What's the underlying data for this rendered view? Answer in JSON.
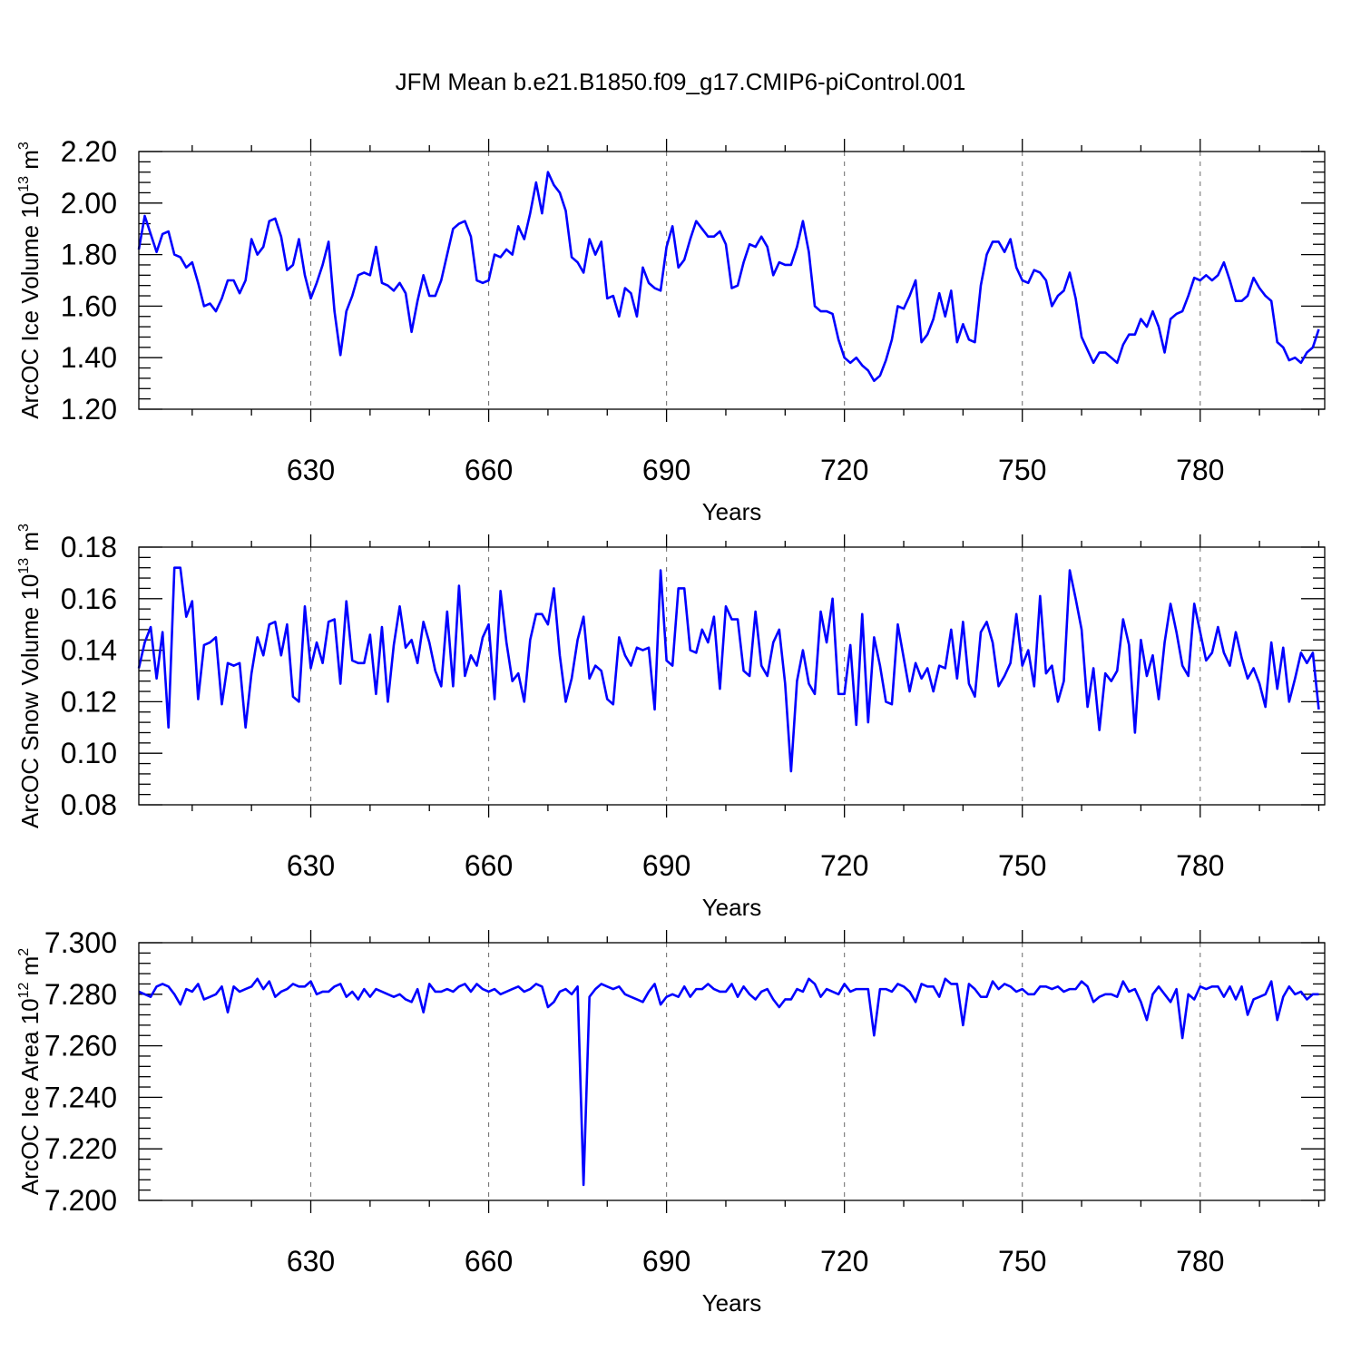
{
  "title": "JFM Mean b.e21.B1850.f09_g17.CMIP6-piControl.001",
  "line_color": "#0000ff",
  "chart_data": [
    {
      "type": "line",
      "xlabel": "Years",
      "ylabel": "ArcOC Ice Volume 10",
      "ylabel_exp": "13",
      "ylabel_unit": "m",
      "ylabel_unit_exp": "3",
      "xlim": [
        601,
        801
      ],
      "ylim": [
        1.2,
        2.2
      ],
      "x_ticks": [
        "630",
        "660",
        "690",
        "720",
        "750",
        "780"
      ],
      "y_ticks": [
        "1.20",
        "1.40",
        "1.60",
        "1.80",
        "2.00",
        "2.20"
      ],
      "grid": "vertical dashed at major x ticks",
      "x_start": 601,
      "values": [
        1.82,
        1.95,
        1.88,
        1.81,
        1.88,
        1.89,
        1.8,
        1.79,
        1.75,
        1.77,
        1.69,
        1.6,
        1.61,
        1.58,
        1.63,
        1.7,
        1.7,
        1.65,
        1.7,
        1.86,
        1.8,
        1.83,
        1.93,
        1.94,
        1.87,
        1.74,
        1.76,
        1.86,
        1.72,
        1.63,
        1.69,
        1.76,
        1.85,
        1.58,
        1.41,
        1.58,
        1.64,
        1.72,
        1.73,
        1.72,
        1.83,
        1.69,
        1.68,
        1.66,
        1.69,
        1.65,
        1.5,
        1.62,
        1.72,
        1.64,
        1.64,
        1.7,
        1.8,
        1.9,
        1.92,
        1.93,
        1.87,
        1.7,
        1.69,
        1.7,
        1.8,
        1.79,
        1.82,
        1.8,
        1.91,
        1.86,
        1.96,
        2.08,
        1.96,
        2.12,
        2.07,
        2.04,
        1.97,
        1.79,
        1.77,
        1.73,
        1.86,
        1.8,
        1.85,
        1.63,
        1.64,
        1.56,
        1.67,
        1.65,
        1.56,
        1.75,
        1.69,
        1.67,
        1.66,
        1.83,
        1.91,
        1.75,
        1.78,
        1.86,
        1.93,
        1.9,
        1.87,
        1.87,
        1.89,
        1.84,
        1.67,
        1.68,
        1.77,
        1.84,
        1.83,
        1.87,
        1.83,
        1.72,
        1.77,
        1.76,
        1.76,
        1.83,
        1.93,
        1.81,
        1.6,
        1.58,
        1.58,
        1.57,
        1.47,
        1.4,
        1.38,
        1.4,
        1.37,
        1.35,
        1.31,
        1.33,
        1.39,
        1.47,
        1.6,
        1.59,
        1.64,
        1.7,
        1.46,
        1.49,
        1.55,
        1.65,
        1.56,
        1.66,
        1.46,
        1.53,
        1.47,
        1.46,
        1.68,
        1.8,
        1.85,
        1.85,
        1.81,
        1.86,
        1.75,
        1.7,
        1.69,
        1.74,
        1.73,
        1.7,
        1.6,
        1.64,
        1.66,
        1.73,
        1.63,
        1.48,
        1.43,
        1.38,
        1.42,
        1.42,
        1.4,
        1.38,
        1.45,
        1.49,
        1.49,
        1.55,
        1.52,
        1.58,
        1.52,
        1.42,
        1.55,
        1.57,
        1.58,
        1.64,
        1.71,
        1.7,
        1.72,
        1.7,
        1.72,
        1.77,
        1.7,
        1.62,
        1.62,
        1.64,
        1.71,
        1.67,
        1.64,
        1.62,
        1.46,
        1.44,
        1.39,
        1.4,
        1.38,
        1.42,
        1.44,
        1.51
      ]
    },
    {
      "type": "line",
      "xlabel": "Years",
      "ylabel": "ArcOC Snow Volume 10",
      "ylabel_exp": "13",
      "ylabel_unit": "m",
      "ylabel_unit_exp": "3",
      "xlim": [
        601,
        801
      ],
      "ylim": [
        0.08,
        0.18
      ],
      "x_ticks": [
        "630",
        "660",
        "690",
        "720",
        "750",
        "780"
      ],
      "y_ticks": [
        "0.08",
        "0.10",
        "0.12",
        "0.14",
        "0.16",
        "0.18"
      ],
      "grid": "vertical dashed at major x ticks",
      "x_start": 601,
      "values": [
        0.133,
        0.143,
        0.149,
        0.129,
        0.147,
        0.11,
        0.172,
        0.172,
        0.153,
        0.159,
        0.121,
        0.142,
        0.143,
        0.145,
        0.119,
        0.135,
        0.134,
        0.135,
        0.11,
        0.131,
        0.145,
        0.138,
        0.15,
        0.151,
        0.138,
        0.15,
        0.122,
        0.12,
        0.157,
        0.133,
        0.143,
        0.135,
        0.151,
        0.152,
        0.127,
        0.159,
        0.136,
        0.135,
        0.135,
        0.146,
        0.123,
        0.149,
        0.12,
        0.142,
        0.157,
        0.141,
        0.144,
        0.135,
        0.151,
        0.143,
        0.132,
        0.126,
        0.155,
        0.126,
        0.165,
        0.13,
        0.138,
        0.134,
        0.145,
        0.15,
        0.121,
        0.163,
        0.143,
        0.128,
        0.131,
        0.12,
        0.144,
        0.154,
        0.154,
        0.15,
        0.164,
        0.138,
        0.12,
        0.129,
        0.144,
        0.153,
        0.129,
        0.134,
        0.132,
        0.121,
        0.119,
        0.145,
        0.138,
        0.134,
        0.141,
        0.14,
        0.141,
        0.117,
        0.171,
        0.136,
        0.134,
        0.164,
        0.164,
        0.14,
        0.139,
        0.148,
        0.143,
        0.153,
        0.125,
        0.157,
        0.152,
        0.152,
        0.132,
        0.13,
        0.155,
        0.134,
        0.13,
        0.143,
        0.148,
        0.127,
        0.093,
        0.128,
        0.14,
        0.127,
        0.123,
        0.155,
        0.143,
        0.16,
        0.123,
        0.123,
        0.142,
        0.111,
        0.154,
        0.112,
        0.145,
        0.134,
        0.12,
        0.119,
        0.15,
        0.137,
        0.124,
        0.135,
        0.129,
        0.133,
        0.124,
        0.134,
        0.133,
        0.148,
        0.129,
        0.151,
        0.127,
        0.122,
        0.147,
        0.151,
        0.143,
        0.126,
        0.13,
        0.135,
        0.154,
        0.134,
        0.14,
        0.126,
        0.161,
        0.131,
        0.134,
        0.12,
        0.128,
        0.171,
        0.16,
        0.148,
        0.118,
        0.133,
        0.109,
        0.131,
        0.128,
        0.132,
        0.152,
        0.142,
        0.108,
        0.144,
        0.13,
        0.138,
        0.121,
        0.143,
        0.158,
        0.147,
        0.134,
        0.13,
        0.158,
        0.147,
        0.136,
        0.139,
        0.149,
        0.139,
        0.134,
        0.147,
        0.137,
        0.129,
        0.133,
        0.127,
        0.118,
        0.143,
        0.125,
        0.141,
        0.12,
        0.129,
        0.139,
        0.135,
        0.139,
        0.117
      ]
    },
    {
      "type": "line",
      "xlabel": "Years",
      "ylabel": "ArcOC Ice Area 10",
      "ylabel_exp": "12",
      "ylabel_unit": "m",
      "ylabel_unit_exp": "2",
      "xlim": [
        601,
        801
      ],
      "ylim": [
        7.2,
        7.3
      ],
      "x_ticks": [
        "630",
        "660",
        "690",
        "720",
        "750",
        "780"
      ],
      "y_ticks": [
        "7.200",
        "7.220",
        "7.240",
        "7.260",
        "7.280",
        "7.300"
      ],
      "grid": "vertical dashed at major x ticks",
      "x_start": 601,
      "values": [
        7.281,
        7.28,
        7.279,
        7.283,
        7.284,
        7.283,
        7.28,
        7.276,
        7.282,
        7.281,
        7.284,
        7.278,
        7.279,
        7.28,
        7.283,
        7.273,
        7.283,
        7.281,
        7.282,
        7.283,
        7.286,
        7.282,
        7.285,
        7.279,
        7.281,
        7.282,
        7.284,
        7.283,
        7.283,
        7.285,
        7.28,
        7.281,
        7.281,
        7.283,
        7.284,
        7.279,
        7.281,
        7.278,
        7.282,
        7.279,
        7.282,
        7.281,
        7.28,
        7.279,
        7.28,
        7.278,
        7.277,
        7.282,
        7.273,
        7.284,
        7.281,
        7.281,
        7.282,
        7.281,
        7.283,
        7.284,
        7.281,
        7.284,
        7.282,
        7.281,
        7.282,
        7.28,
        7.281,
        7.282,
        7.283,
        7.281,
        7.282,
        7.284,
        7.283,
        7.275,
        7.277,
        7.281,
        7.282,
        7.28,
        7.283,
        7.206,
        7.279,
        7.282,
        7.284,
        7.283,
        7.282,
        7.283,
        7.28,
        7.279,
        7.278,
        7.277,
        7.281,
        7.284,
        7.276,
        7.279,
        7.28,
        7.279,
        7.283,
        7.279,
        7.282,
        7.282,
        7.284,
        7.282,
        7.281,
        7.281,
        7.284,
        7.279,
        7.283,
        7.28,
        7.278,
        7.281,
        7.282,
        7.278,
        7.275,
        7.278,
        7.278,
        7.282,
        7.281,
        7.286,
        7.284,
        7.279,
        7.282,
        7.281,
        7.28,
        7.284,
        7.281,
        7.282,
        7.282,
        7.282,
        7.264,
        7.282,
        7.282,
        7.281,
        7.284,
        7.283,
        7.281,
        7.277,
        7.284,
        7.283,
        7.283,
        7.279,
        7.286,
        7.284,
        7.284,
        7.268,
        7.284,
        7.282,
        7.279,
        7.279,
        7.285,
        7.282,
        7.284,
        7.283,
        7.281,
        7.282,
        7.28,
        7.28,
        7.283,
        7.283,
        7.282,
        7.283,
        7.281,
        7.282,
        7.282,
        7.285,
        7.283,
        7.277,
        7.279,
        7.28,
        7.28,
        7.279,
        7.285,
        7.281,
        7.282,
        7.277,
        7.27,
        7.28,
        7.283,
        7.28,
        7.277,
        7.282,
        7.263,
        7.28,
        7.278,
        7.283,
        7.282,
        7.283,
        7.283,
        7.279,
        7.283,
        7.278,
        7.283,
        7.272,
        7.278,
        7.279,
        7.28,
        7.285,
        7.27,
        7.279,
        7.283,
        7.28,
        7.281,
        7.278,
        7.28,
        7.28
      ]
    }
  ]
}
